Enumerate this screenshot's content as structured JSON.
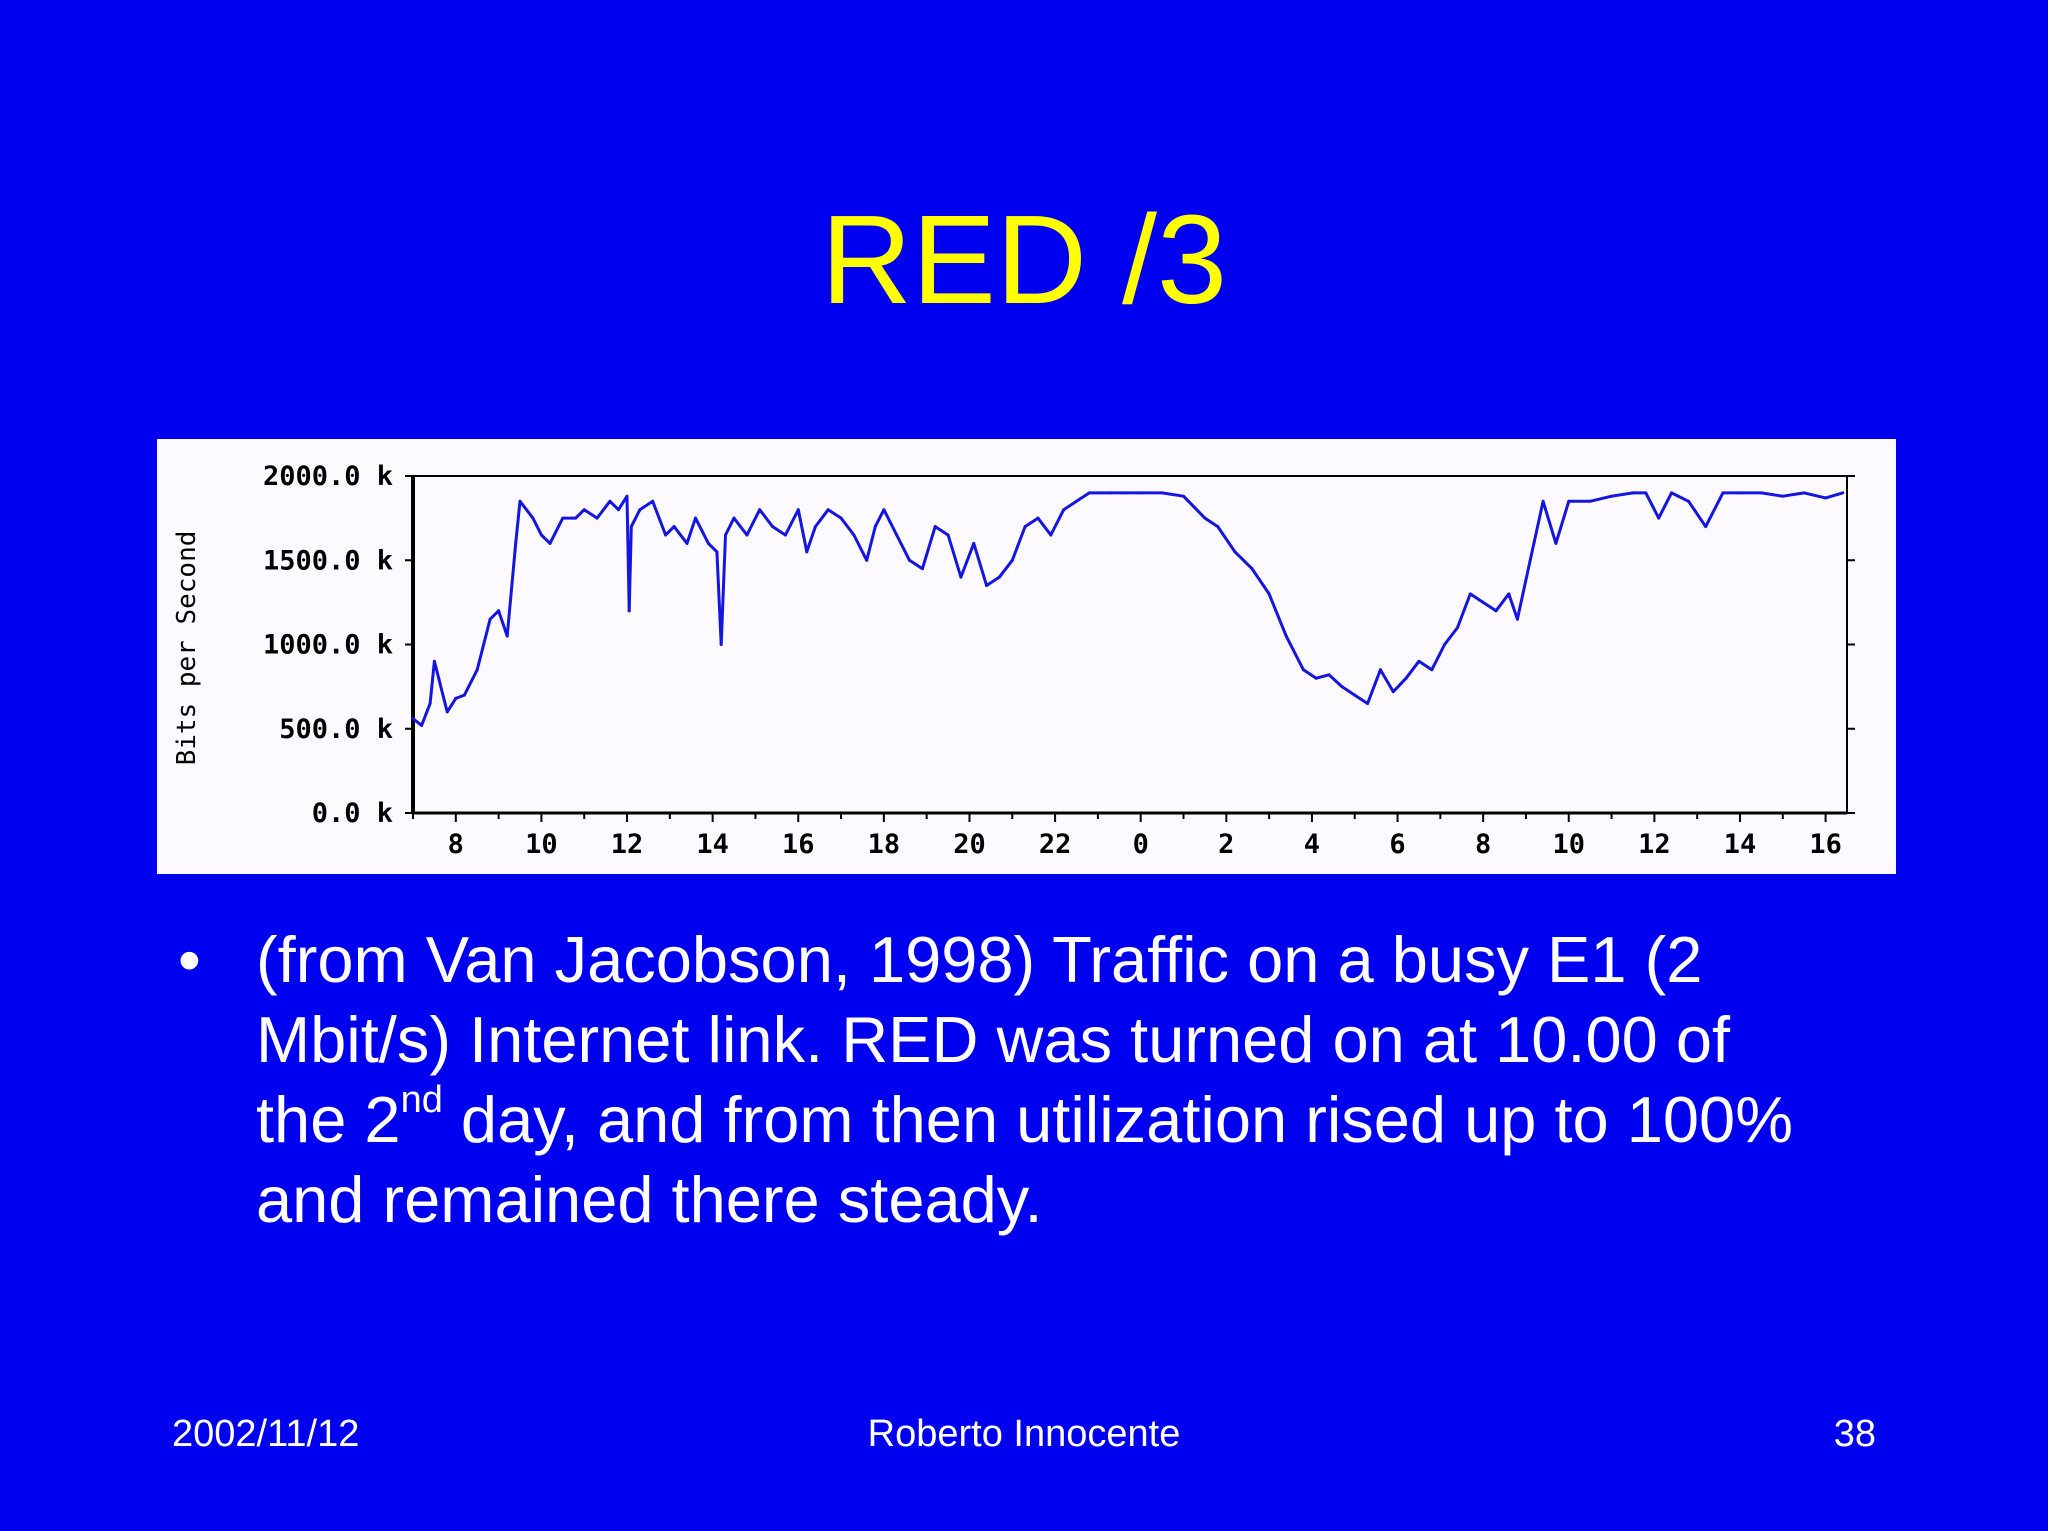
{
  "slide": {
    "title": "RED /3",
    "bullet_symbol": "•",
    "bullet": {
      "part1": "(from Van Jacobson, 1998) Traffic on a busy E1 (2 Mbit/s) Internet link. RED was turned on at 10.00 of the 2",
      "superscript": "nd",
      "part2": " day, and from then utilization rised up to 100% and remained there steady."
    },
    "footer": {
      "date": "2002/11/12",
      "author": "Roberto Innocente",
      "page": "38"
    }
  },
  "colors": {
    "background": "#0000f0",
    "title": "#ffff00",
    "text": "#ffffff",
    "series": "#1515e0",
    "axis": "#000000",
    "plot_bg": "#fdfaff"
  },
  "chart_data": {
    "type": "line",
    "title": "",
    "xlabel": "",
    "ylabel": "Bits per Second",
    "ylim": [
      0,
      2000
    ],
    "y_ticks": [
      0,
      500,
      1000,
      1500,
      2000
    ],
    "y_tick_labels": [
      "0.0 k",
      "500.0 k",
      "1000.0 k",
      "1500.0 k",
      "2000.0 k"
    ],
    "x_range": [
      7,
      40.5
    ],
    "x_ticks": [
      8,
      10,
      12,
      14,
      16,
      18,
      20,
      22,
      24,
      26,
      28,
      30,
      32,
      34,
      36,
      38,
      40
    ],
    "x_tick_labels": [
      "8",
      "10",
      "12",
      "14",
      "16",
      "18",
      "20",
      "22",
      "0",
      "2",
      "4",
      "6",
      "8",
      "10",
      "12",
      "14",
      "16"
    ],
    "grid": false,
    "series": [
      {
        "x": [
          7.0,
          7.2,
          7.4,
          7.5,
          7.6,
          7.8,
          8.0,
          8.2,
          8.5,
          8.8,
          9.0,
          9.2,
          9.4,
          9.5,
          9.8,
          10.0,
          10.2,
          10.5,
          10.8,
          11.0,
          11.3,
          11.6,
          11.8,
          12.0,
          12.05,
          12.1,
          12.3,
          12.6,
          12.9,
          13.1,
          13.4,
          13.6,
          13.9,
          14.1,
          14.2,
          14.3,
          14.5,
          14.8,
          15.1,
          15.4,
          15.7,
          16.0,
          16.2,
          16.4,
          16.7,
          17.0,
          17.3,
          17.6,
          17.8,
          18.0,
          18.3,
          18.6,
          18.9,
          19.2,
          19.5,
          19.8,
          20.1,
          20.4,
          20.7,
          21.0,
          21.3,
          21.6,
          21.9,
          22.2,
          22.5,
          22.8,
          23.0,
          23.3,
          23.6,
          24.0,
          24.5,
          25.0,
          25.5,
          25.8,
          26.2,
          26.6,
          27.0,
          27.4,
          27.8,
          28.1,
          28.4,
          28.7,
          29.0,
          29.3,
          29.6,
          29.9,
          30.2,
          30.5,
          30.8,
          31.1,
          31.4,
          31.7,
          32.0,
          32.3,
          32.6,
          32.8,
          33.1,
          33.4,
          33.7,
          34.0,
          34.5,
          35.0,
          35.5,
          35.8,
          36.1,
          36.4,
          36.8,
          37.2,
          37.6,
          38.0,
          38.5,
          39.0,
          39.5,
          40.0,
          40.4
        ],
        "y": [
          560,
          520,
          650,
          900,
          800,
          600,
          680,
          700,
          850,
          1150,
          1200,
          1050,
          1600,
          1850,
          1750,
          1650,
          1600,
          1750,
          1750,
          1800,
          1750,
          1850,
          1800,
          1880,
          1200,
          1700,
          1800,
          1850,
          1650,
          1700,
          1600,
          1750,
          1600,
          1550,
          1000,
          1650,
          1750,
          1650,
          1800,
          1700,
          1650,
          1800,
          1550,
          1700,
          1800,
          1750,
          1650,
          1500,
          1700,
          1800,
          1650,
          1500,
          1450,
          1700,
          1650,
          1400,
          1600,
          1350,
          1400,
          1500,
          1700,
          1750,
          1650,
          1800,
          1850,
          1900,
          1900,
          1900,
          1900,
          1900,
          1900,
          1880,
          1750,
          1700,
          1550,
          1450,
          1300,
          1050,
          850,
          800,
          820,
          750,
          700,
          650,
          850,
          720,
          800,
          900,
          850,
          1000,
          1100,
          1300,
          1250,
          1200,
          1300,
          1150,
          1500,
          1850,
          1600,
          1850,
          1850,
          1880,
          1900,
          1900,
          1750,
          1900,
          1850,
          1700,
          1900,
          1900,
          1900,
          1880,
          1900,
          1870,
          1900
        ]
      }
    ]
  }
}
